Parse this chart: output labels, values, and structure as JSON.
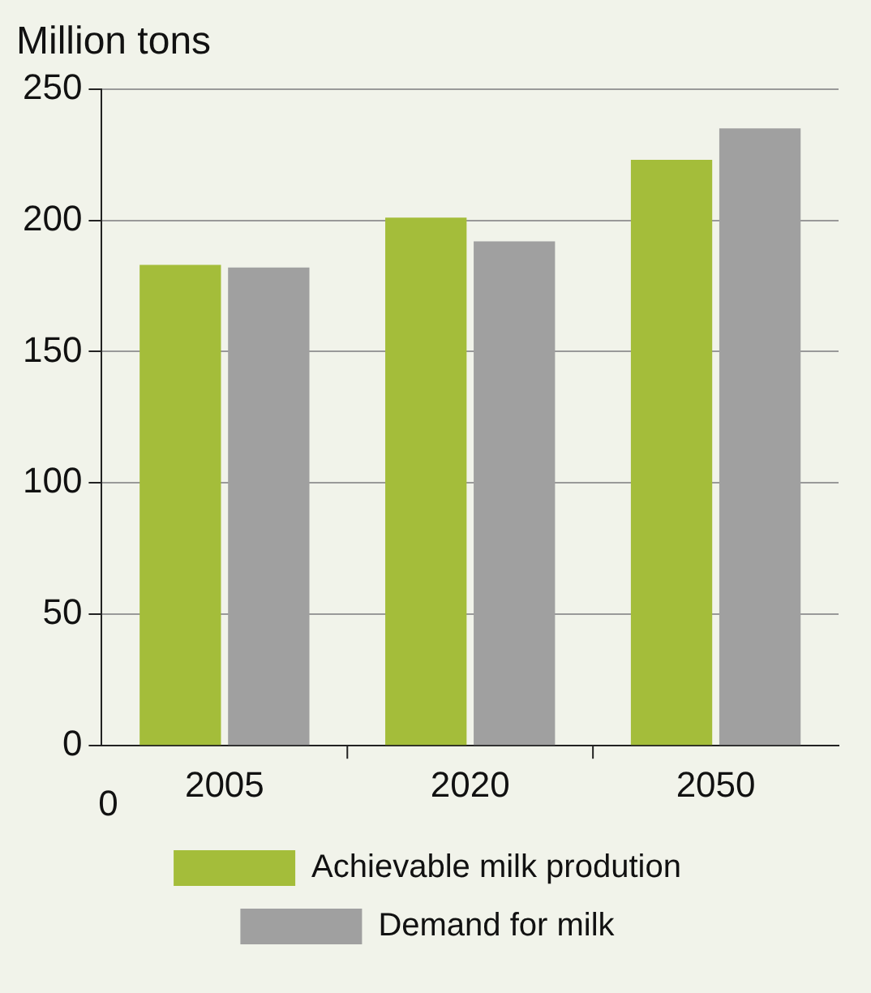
{
  "chart_data": {
    "type": "bar",
    "ylabel": "Million tons",
    "categories": [
      "2005",
      "2020",
      "2050"
    ],
    "series": [
      {
        "name": "Achievable milk prodution",
        "color": "#a4bd3a",
        "values": [
          183,
          201,
          223
        ]
      },
      {
        "name": "Demand for milk",
        "color": "#a0a0a0",
        "values": [
          182,
          192,
          235
        ]
      }
    ],
    "ylim": [
      0,
      250
    ],
    "yticks": [
      0,
      50,
      100,
      150,
      200,
      250
    ],
    "grid": "y",
    "legend": "bottom",
    "annotations": [
      "0"
    ]
  }
}
